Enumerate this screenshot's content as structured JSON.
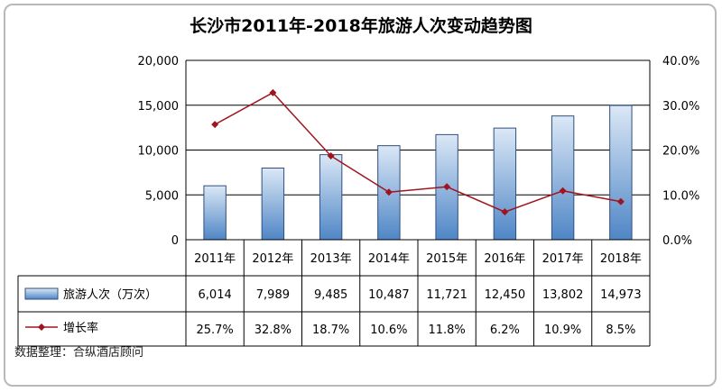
{
  "chart_data": {
    "type": "bar+line",
    "title": "长沙市2011年-2018年旅游人次变动趋势图",
    "categories": [
      "2011年",
      "2012年",
      "2013年",
      "2014年",
      "2015年",
      "2016年",
      "2017年",
      "2018年"
    ],
    "series": [
      {
        "name": "旅游人次（万次）",
        "type": "bar",
        "axis": "left",
        "values": [
          6014,
          7989,
          9485,
          10487,
          11721,
          12450,
          13802,
          14973
        ],
        "labels": [
          "6,014",
          "7,989",
          "9,485",
          "10,487",
          "11,721",
          "12,450",
          "13,802",
          "14,973"
        ]
      },
      {
        "name": "增长率",
        "type": "line",
        "axis": "right",
        "values": [
          25.7,
          32.8,
          18.7,
          10.6,
          11.8,
          6.2,
          10.9,
          8.5
        ],
        "labels": [
          "25.7%",
          "32.8%",
          "18.7%",
          "10.6%",
          "11.8%",
          "6.2%",
          "10.9%",
          "8.5%"
        ]
      }
    ],
    "y_left": {
      "lim": [
        0,
        20000
      ],
      "ticks": [
        0,
        5000,
        10000,
        15000,
        20000
      ],
      "tick_labels": [
        "0",
        "5,000",
        "10,000",
        "15,000",
        "20,000"
      ]
    },
    "y_right": {
      "lim": [
        0,
        40
      ],
      "ticks": [
        0,
        10,
        20,
        30,
        40
      ],
      "tick_labels": [
        "0.0%",
        "10.0%",
        "20.0%",
        "30.0%",
        "40.0%"
      ]
    },
    "grid": "horizontal",
    "legend": "data-table",
    "colors": {
      "bar_top": "#dbe8f6",
      "bar_bottom": "#4f86c6",
      "bar_edge": "#2f4f7f",
      "line": "#a0141e",
      "grid": "#000000"
    }
  },
  "source_note": "数据整理：合纵酒店顾问"
}
